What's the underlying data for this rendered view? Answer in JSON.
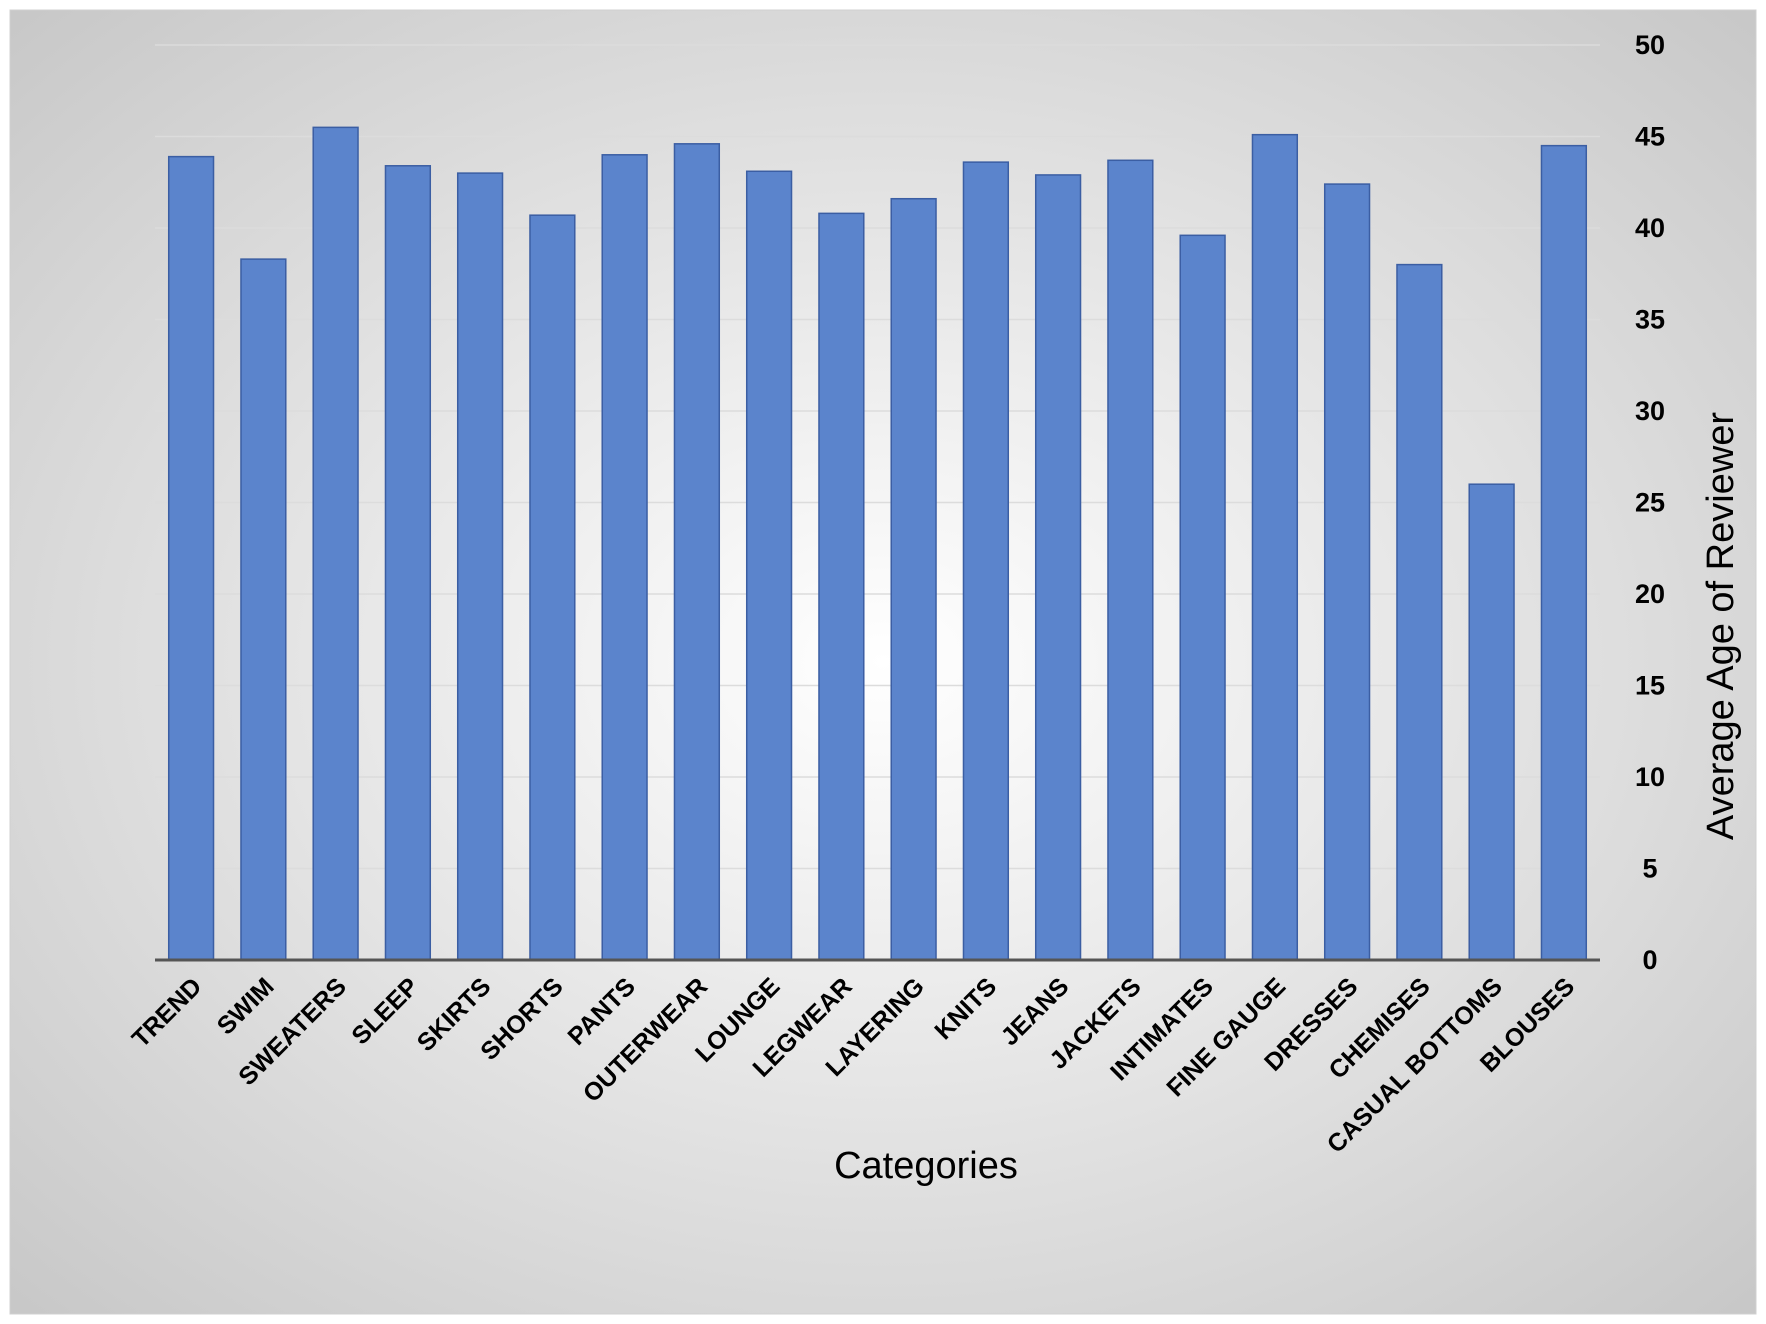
{
  "chart_data": {
    "type": "bar",
    "title": "",
    "xlabel": "Categories",
    "ylabel": "Average Age of Reviewer",
    "ylim": [
      0,
      50
    ],
    "y_ticks": [
      0,
      5,
      10,
      15,
      20,
      25,
      30,
      35,
      40,
      45,
      50
    ],
    "y_axis_position": "right",
    "grid": true,
    "categories": [
      "TREND",
      "SWIM",
      "SWEATERS",
      "SLEEP",
      "SKIRTS",
      "SHORTS",
      "PANTS",
      "OUTERWEAR",
      "LOUNGE",
      "LEGWEAR",
      "LAYERING",
      "KNITS",
      "JEANS",
      "JACKETS",
      "INTIMATES",
      "FINE GAUGE",
      "DRESSES",
      "CHEMISES",
      "CASUAL BOTTOMS",
      "BLOUSES"
    ],
    "values": [
      43.9,
      38.3,
      45.5,
      43.4,
      43.0,
      40.7,
      44.0,
      44.6,
      43.1,
      40.8,
      41.6,
      43.6,
      42.9,
      43.7,
      39.6,
      45.1,
      42.4,
      38.0,
      26.0,
      44.5
    ]
  },
  "colors": {
    "bar_fill": "#5b84cc",
    "bar_stroke": "#3b5ea3",
    "axis_line": "#555555",
    "gridline": "#dcdcdc",
    "background_center": "#ffffff",
    "background_edge": "#c4c4c4"
  }
}
